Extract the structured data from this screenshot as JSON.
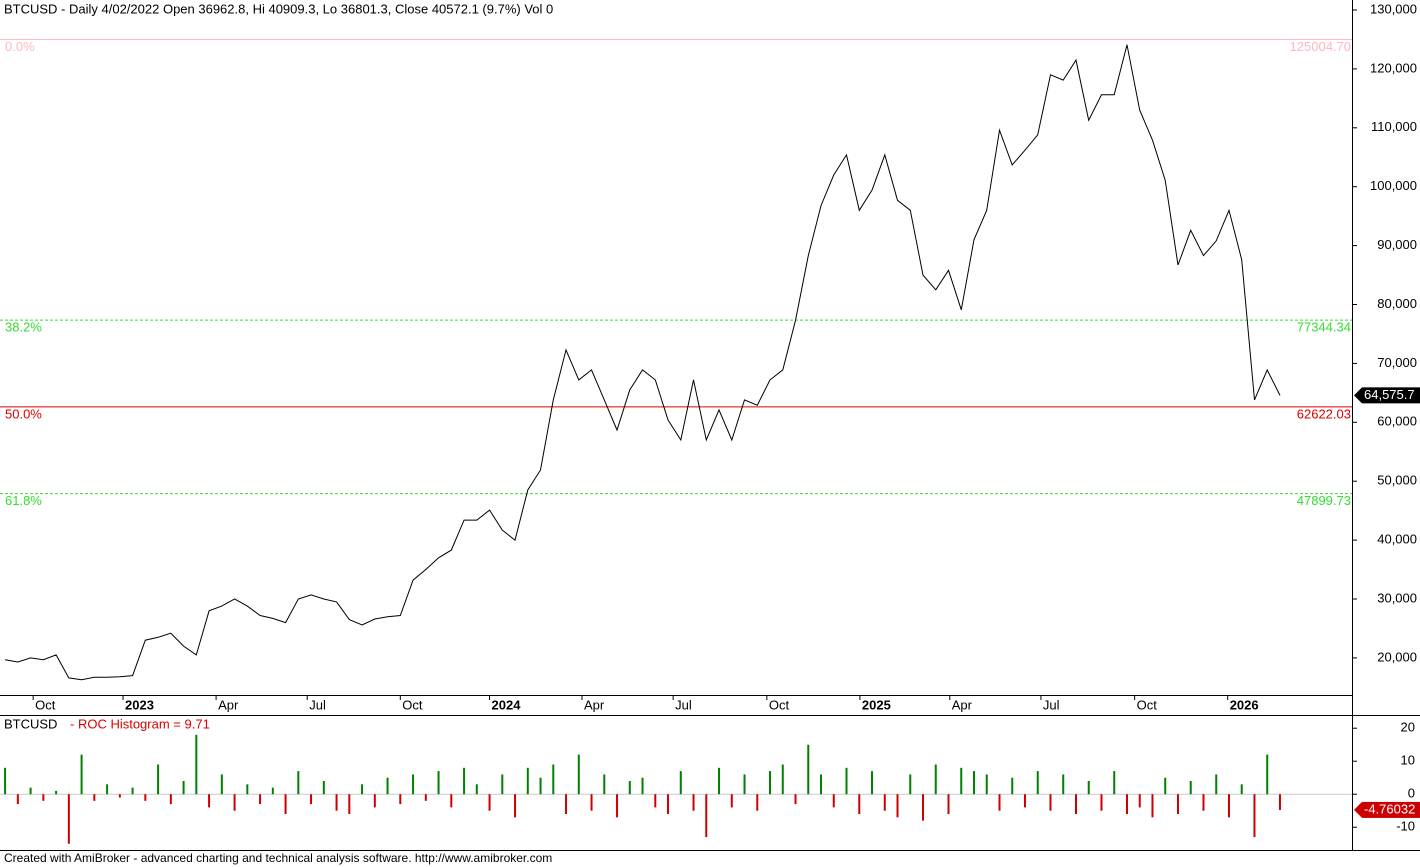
{
  "chart_data": [
    {
      "type": "line",
      "header": "BTCUSD - Daily 4/02/2022 Open 36962.8, Hi 40909.3, Lo 36801.3, Close 40572.1 (9.7%) Vol 0",
      "series": [
        {
          "name": "BTCUSD",
          "color": "#000000",
          "values": [
            19700,
            19300,
            20000,
            19700,
            20500,
            16600,
            16300,
            16700,
            16700,
            16800,
            17000,
            23000,
            23500,
            24200,
            22000,
            20500,
            28000,
            28800,
            30000,
            28800,
            27200,
            26700,
            26000,
            30000,
            30700,
            30000,
            29500,
            26500,
            25600,
            26600,
            27000,
            27200,
            33200,
            35000,
            37000,
            38300,
            43400,
            43400,
            45100,
            41700,
            40000,
            48500,
            51900,
            63800,
            72300,
            67200,
            68900,
            63800,
            58700,
            65500,
            68900,
            67200,
            60400,
            57000,
            67200,
            57000,
            62100,
            57000,
            63800,
            62900,
            67200,
            68900,
            77300,
            88300,
            96800,
            102000,
            105400,
            96000,
            99400,
            105400,
            97700,
            96000,
            85000,
            82500,
            85800,
            79100,
            91000,
            96000,
            109600,
            103700,
            106200,
            108800,
            119000,
            118100,
            121500,
            111300,
            115600,
            115600,
            124100,
            113000,
            107900,
            101100,
            86700,
            92600,
            88300,
            90800,
            96000,
            87600,
            63800,
            68900,
            64575.7
          ]
        }
      ],
      "xlim": [
        -0.4,
        105.65
      ],
      "xticks": [
        {
          "value": 2.2,
          "label": "Oct"
        },
        {
          "value": 9.25,
          "label": "2023"
        },
        {
          "value": 16.55,
          "label": "Apr"
        },
        {
          "value": 23.7,
          "label": "Jul"
        },
        {
          "value": 31.0,
          "label": "Oct"
        },
        {
          "value": 38.0,
          "label": "2024"
        },
        {
          "value": 45.25,
          "label": "Apr"
        },
        {
          "value": 52.4,
          "label": "Jul"
        },
        {
          "value": 59.75,
          "label": "Oct"
        },
        {
          "value": 67.05,
          "label": "2025"
        },
        {
          "value": 74.1,
          "label": "Apr"
        },
        {
          "value": 81.25,
          "label": "Jul"
        },
        {
          "value": 88.6,
          "label": "Oct"
        },
        {
          "value": 95.9,
          "label": "2026"
        }
      ],
      "ylim": [
        13700,
        131700
      ],
      "yticks": [
        {
          "value": 20000,
          "label": "20,000"
        },
        {
          "value": 30000,
          "label": "30,000"
        },
        {
          "value": 40000,
          "label": "40,000"
        },
        {
          "value": 50000,
          "label": "50,000"
        },
        {
          "value": 60000,
          "label": "60,000"
        },
        {
          "value": 70000,
          "label": "70,000"
        },
        {
          "value": 80000,
          "label": "80,000"
        },
        {
          "value": 90000,
          "label": "90,000"
        },
        {
          "value": 100000,
          "label": "100,000"
        },
        {
          "value": 110000,
          "label": "110,000"
        },
        {
          "value": 120000,
          "label": "120,000"
        },
        {
          "value": 130000,
          "label": "130,000"
        }
      ],
      "levels": [
        {
          "name": "0.0%",
          "value": 125004.7,
          "label": "125004.70",
          "color": "#ffb6c1",
          "style": "solid"
        },
        {
          "name": "38.2%",
          "value": 77344.34,
          "label": "77344.34",
          "color": "#33dd33",
          "style": "dashed"
        },
        {
          "name": "50.0%",
          "value": 62622.03,
          "label": "62622.03",
          "color": "#dd0000",
          "style": "solid"
        },
        {
          "name": "61.8%",
          "value": 47899.73,
          "label": "47899.73",
          "color": "#33dd33",
          "style": "dashed"
        }
      ],
      "last": {
        "value": 64575.7,
        "label": "64,575.7"
      }
    },
    {
      "type": "bar",
      "symbol": "BTCUSD",
      "title": "- ROC Histogram = 9.71",
      "title_color": "#dd0000",
      "positive_color": "#008000",
      "negative_color": "#cc0000",
      "values": [
        8,
        -3,
        2,
        -2,
        1,
        -15,
        12,
        -2,
        3,
        -1,
        2,
        -2,
        9,
        -3,
        4,
        18,
        -4,
        6,
        -5,
        3,
        -3,
        2,
        -6,
        7,
        -3,
        4,
        -5,
        -6,
        3,
        -4,
        5,
        -3,
        6,
        -2,
        7,
        -4,
        8,
        3,
        -5,
        6,
        -7,
        8,
        5,
        9,
        -6,
        12,
        -5,
        6,
        -7,
        4,
        5,
        -4,
        -6,
        7,
        -5,
        -13,
        8,
        -4,
        6,
        -5,
        7,
        9,
        -3,
        15,
        6,
        -4,
        8,
        -6,
        7,
        -5,
        -7,
        6,
        -8,
        9,
        -6,
        8,
        7,
        6,
        -5,
        5,
        -4,
        7,
        -5,
        6,
        -6,
        4,
        -5,
        7,
        -6,
        -4,
        -7,
        5,
        -6,
        4,
        -5,
        6,
        -7,
        3,
        -13,
        12,
        -4.76032
      ],
      "xlim": [
        -0.4,
        105.65
      ],
      "ylim": [
        -16.9,
        24
      ],
      "yticks": [
        20,
        10,
        0,
        -10
      ]
    }
  ],
  "footer": "Created with AmiBroker - advanced charting and technical analysis software. http://www.amibroker.com"
}
